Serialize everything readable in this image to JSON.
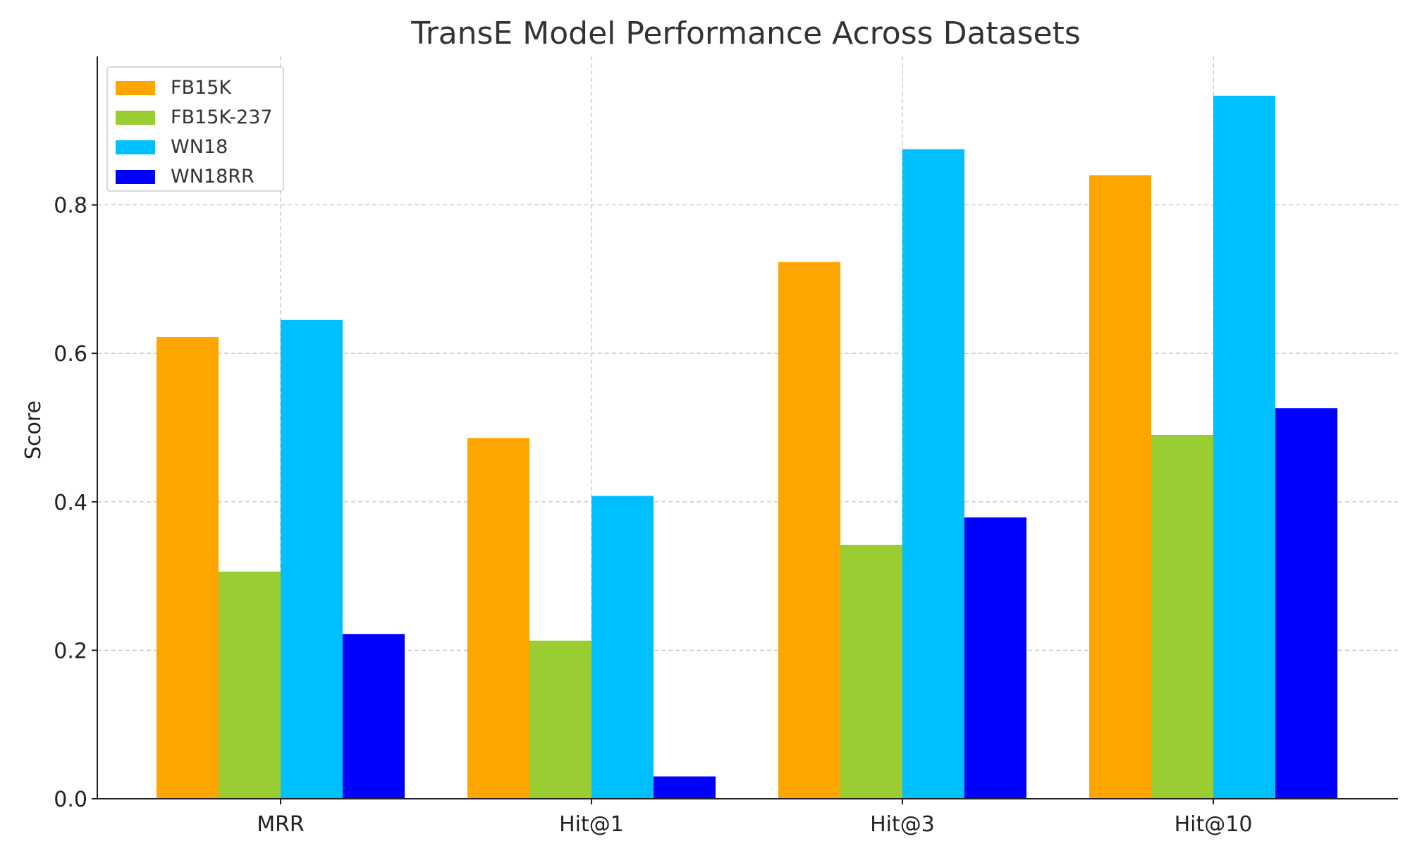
{
  "chart_data": {
    "type": "bar",
    "title": "TransE Model Performance Across Datasets",
    "xlabel": "",
    "ylabel": "Score",
    "categories": [
      "MRR",
      "Hit@1",
      "Hit@3",
      "Hit@10"
    ],
    "ylim": [
      0,
      1.0
    ],
    "yticks": [
      0.0,
      0.2,
      0.4,
      0.6,
      0.8
    ],
    "ytick_labels": [
      "0.0",
      "0.2",
      "0.4",
      "0.6",
      "0.8"
    ],
    "grid": true,
    "legend_position": "top-left",
    "series": [
      {
        "name": "FB15K",
        "color": "#FFA500",
        "values": [
          0.622,
          0.486,
          0.723,
          0.84
        ]
      },
      {
        "name": "FB15K-237",
        "color": "#9ACD32",
        "values": [
          0.306,
          0.213,
          0.342,
          0.49
        ]
      },
      {
        "name": "WN18",
        "color": "#00BFFF",
        "values": [
          0.645,
          0.408,
          0.875,
          0.947
        ]
      },
      {
        "name": "WN18RR",
        "color": "#0000FF",
        "values": [
          0.222,
          0.03,
          0.379,
          0.526
        ]
      }
    ]
  }
}
